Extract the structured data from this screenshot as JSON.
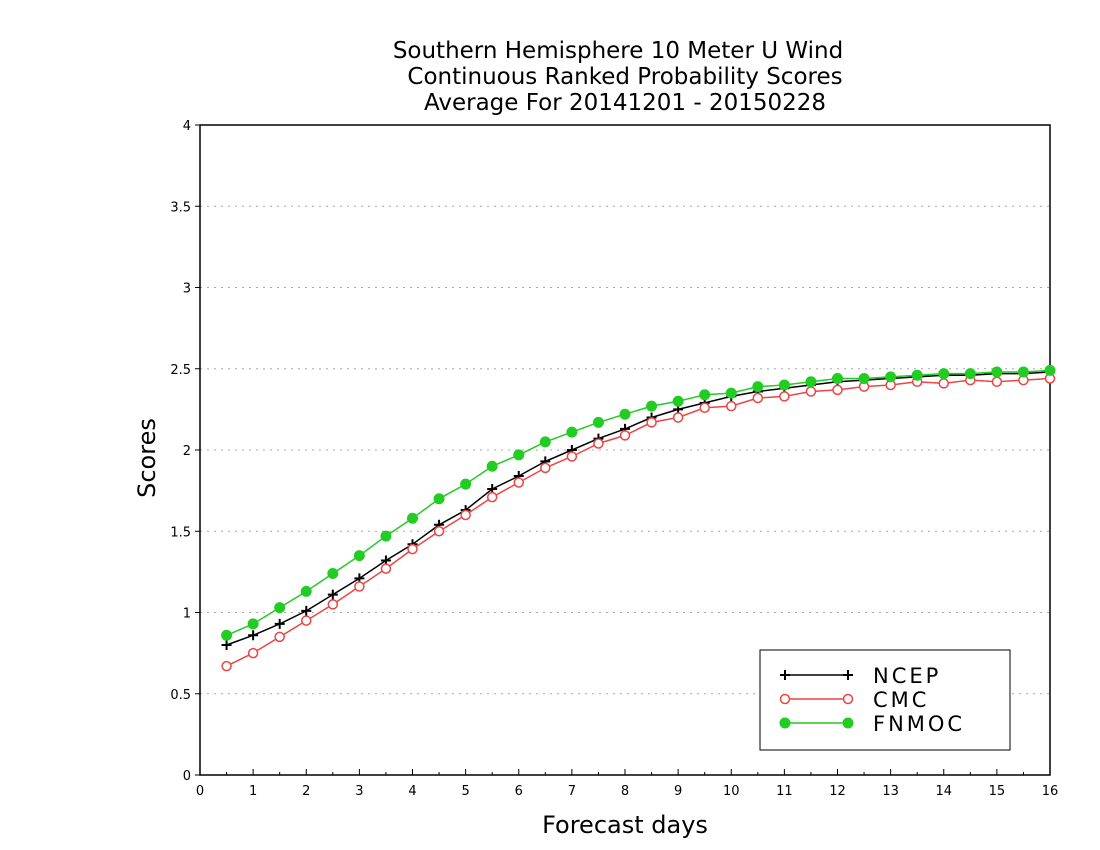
{
  "chart_data": {
    "type": "line",
    "title_lines": [
      "Southern Hemisphere 10 Meter U Wind",
      "Continuous Ranked Probability Scores",
      "Average For 20141201 - 20150228"
    ],
    "xlabel": "Forecast days",
    "ylabel": "Scores",
    "xlim": [
      0,
      16
    ],
    "ylim": [
      0,
      4
    ],
    "xticks": [
      "0",
      "1",
      "2",
      "3",
      "4",
      "5",
      "6",
      "7",
      "8",
      "9",
      "10",
      "11",
      "12",
      "13",
      "14",
      "15",
      "16"
    ],
    "yticks": [
      "0",
      "0.5",
      "1",
      "1.5",
      "2",
      "2.5",
      "3",
      "3.5",
      "4"
    ],
    "grid": "horizontal dotted",
    "legend_position": "bottom-right",
    "x": [
      0.5,
      1,
      1.5,
      2,
      2.5,
      3,
      3.5,
      4,
      4.5,
      5,
      5.5,
      6,
      6.5,
      7,
      7.5,
      8,
      8.5,
      9,
      9.5,
      10,
      10.5,
      11,
      11.5,
      12,
      12.5,
      13,
      13.5,
      14,
      14.5,
      15,
      15.5,
      16
    ],
    "series": [
      {
        "name": "NCEP",
        "color": "#000000",
        "marker": "plus",
        "values": [
          0.8,
          0.86,
          0.93,
          1.01,
          1.11,
          1.21,
          1.32,
          1.42,
          1.54,
          1.63,
          1.76,
          1.84,
          1.93,
          2.0,
          2.07,
          2.13,
          2.2,
          2.25,
          2.29,
          2.33,
          2.36,
          2.38,
          2.4,
          2.42,
          2.43,
          2.44,
          2.45,
          2.46,
          2.46,
          2.47,
          2.47,
          2.48
        ]
      },
      {
        "name": "CMC",
        "color": "#ee4444",
        "marker": "open-circle",
        "values": [
          0.67,
          0.75,
          0.85,
          0.95,
          1.05,
          1.16,
          1.27,
          1.39,
          1.5,
          1.6,
          1.71,
          1.8,
          1.89,
          1.96,
          2.04,
          2.09,
          2.17,
          2.2,
          2.26,
          2.27,
          2.32,
          2.33,
          2.36,
          2.37,
          2.39,
          2.4,
          2.42,
          2.41,
          2.43,
          2.42,
          2.43,
          2.44
        ]
      },
      {
        "name": "FNMOC",
        "color": "#22cc22",
        "marker": "filled-circle",
        "values": [
          0.86,
          0.93,
          1.03,
          1.13,
          1.24,
          1.35,
          1.47,
          1.58,
          1.7,
          1.79,
          1.9,
          1.97,
          2.05,
          2.11,
          2.17,
          2.22,
          2.27,
          2.3,
          2.34,
          2.35,
          2.39,
          2.4,
          2.42,
          2.44,
          2.44,
          2.45,
          2.46,
          2.47,
          2.47,
          2.48,
          2.48,
          2.49
        ]
      }
    ]
  }
}
